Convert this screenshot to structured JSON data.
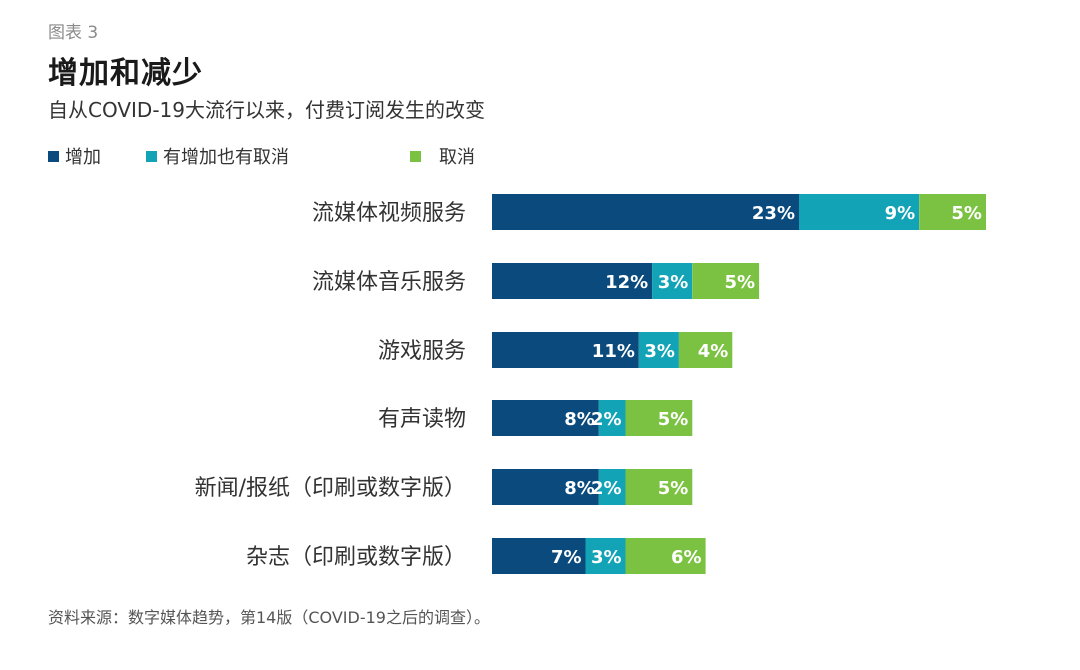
{
  "figure_label": "图表 3",
  "title": "增加和减少",
  "subtitle": "自从COVID-19大流行以来，付费订阅发生的改变",
  "source": "资料来源：数字媒体趋势，第14版（COVID-19之后的调查）。",
  "colors": {
    "increase": "#0b4a7d",
    "both": "#12a4b6",
    "cancel": "#7cc242",
    "label": "#ffffff"
  },
  "chart_data": {
    "type": "bar",
    "orientation": "horizontal",
    "stacked": true,
    "categories": [
      "流媒体视频服务",
      "流媒体音乐服务",
      "游戏服务",
      "有声读物",
      "新闻/报纸（印刷或数字版）",
      "杂志（印刷或数字版）"
    ],
    "series": [
      {
        "name": "增加",
        "color_key": "increase",
        "values": [
          23,
          12,
          11,
          8,
          8,
          7
        ],
        "labels": [
          "23%",
          "12%",
          "11%",
          "8%",
          "8%",
          "7%"
        ]
      },
      {
        "name": "有增加也有取消",
        "color_key": "both",
        "values": [
          9,
          3,
          3,
          2,
          2,
          3
        ],
        "labels": [
          "9%",
          "3%",
          "3%",
          "2%",
          "2%",
          "3%"
        ]
      },
      {
        "name": "取消",
        "color_key": "cancel",
        "values": [
          5,
          5,
          4,
          5,
          5,
          6
        ],
        "labels": [
          "5%",
          "5%",
          "4%",
          "5%",
          "5%",
          "6%"
        ]
      }
    ],
    "unit": "%",
    "legend_position": "top-left",
    "grid": false
  }
}
